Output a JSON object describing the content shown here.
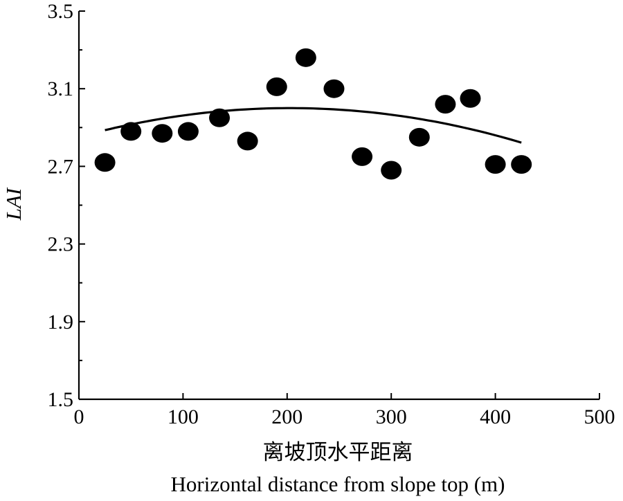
{
  "chart_data": {
    "type": "scatter",
    "title": "",
    "xlabel_cn": "离坡顶水平距离",
    "xlabel": "Horizontal distance from slope top (m)",
    "ylabel": "LAI",
    "xlim": [
      0,
      500
    ],
    "ylim": [
      1.5,
      3.5
    ],
    "xticks": [
      0,
      100,
      200,
      300,
      400,
      500
    ],
    "yticks": [
      "1.5",
      "1.9",
      "2.3",
      "2.7",
      "3.1",
      "3.5"
    ],
    "grid": false,
    "series": [
      {
        "type": "scatter",
        "color": "#000000",
        "x": [
          25,
          50,
          80,
          105,
          135,
          162,
          190,
          218,
          245,
          272,
          300,
          327,
          352,
          376,
          400,
          425
        ],
        "y": [
          2.72,
          2.88,
          2.87,
          2.88,
          2.95,
          2.83,
          3.11,
          3.26,
          3.1,
          2.75,
          2.68,
          2.85,
          3.02,
          3.05,
          2.71,
          2.71
        ]
      },
      {
        "type": "line",
        "fit": "quadratic",
        "color": "#000000",
        "x": [
          25,
          425
        ],
        "coefficients": {
          "a": -3.6e-06,
          "b": 0.00146,
          "c": 2.8521
        }
      }
    ]
  }
}
